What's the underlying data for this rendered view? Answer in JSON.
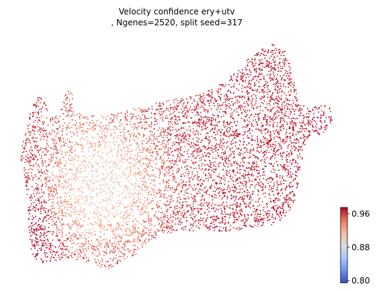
{
  "chart_data": {
    "type": "scatter",
    "title_line1": "Velocity confidence ery+utv",
    "title_line2": ", Ngenes=2520, split seed=317",
    "xlabel": "",
    "ylabel": "",
    "axes_visible": false,
    "grid": false,
    "point_count": 6500,
    "colormap": "coolwarm",
    "colorbar": {
      "placement": "bottom-right",
      "range": [
        0.795,
        0.975
      ],
      "ticks": [
        0.8,
        0.88,
        0.96
      ],
      "tick_labels": [
        "0.80",
        "0.88",
        "0.96"
      ],
      "colors": [
        "#3b4cc0",
        "#6f92f3",
        "#aac7fd",
        "#dddcdc",
        "#f7b89c",
        "#e7745b",
        "#b40426"
      ]
    },
    "regions": [
      {
        "region": "left-lobe",
        "confidence_range": [
          0.93,
          0.96
        ]
      },
      {
        "region": "center-left",
        "confidence_range": [
          0.89,
          0.93
        ]
      },
      {
        "region": "center-right",
        "confidence_range": [
          0.95,
          0.97
        ]
      },
      {
        "region": "upper-right-lobe",
        "confidence_range": [
          0.96,
          0.975
        ]
      }
    ]
  }
}
